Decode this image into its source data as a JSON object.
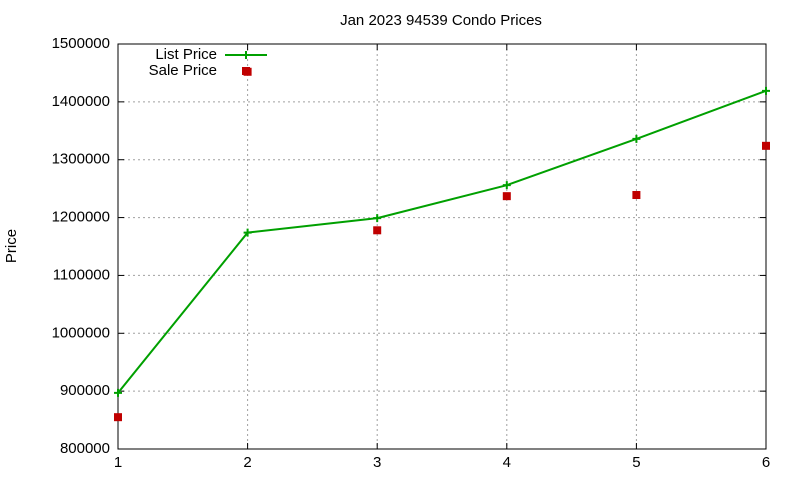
{
  "chart_data": {
    "type": "line",
    "title": "Jan 2023 94539 Condo Prices",
    "y_label": "Price",
    "x": [
      1,
      2,
      3,
      4,
      5,
      6
    ],
    "series": [
      {
        "name": "List Price",
        "color": "#00a000",
        "marker": "plus",
        "line": true,
        "values": [
          897000,
          1174000,
          1199000,
          1256000,
          1336000,
          1419000
        ]
      },
      {
        "name": "Sale Price",
        "color": "#c00000",
        "marker": "square",
        "line": false,
        "values": [
          855000,
          1452000,
          1178000,
          1237000,
          1239000,
          1324000
        ]
      }
    ],
    "xlim": [
      1,
      6
    ],
    "xticks": [
      1,
      2,
      3,
      4,
      5,
      6
    ],
    "ylim": [
      800000,
      1500000
    ],
    "yticks": [
      800000,
      900000,
      1000000,
      1100000,
      1200000,
      1300000,
      1400000,
      1500000
    ],
    "grid": true,
    "legend": "top-left"
  }
}
